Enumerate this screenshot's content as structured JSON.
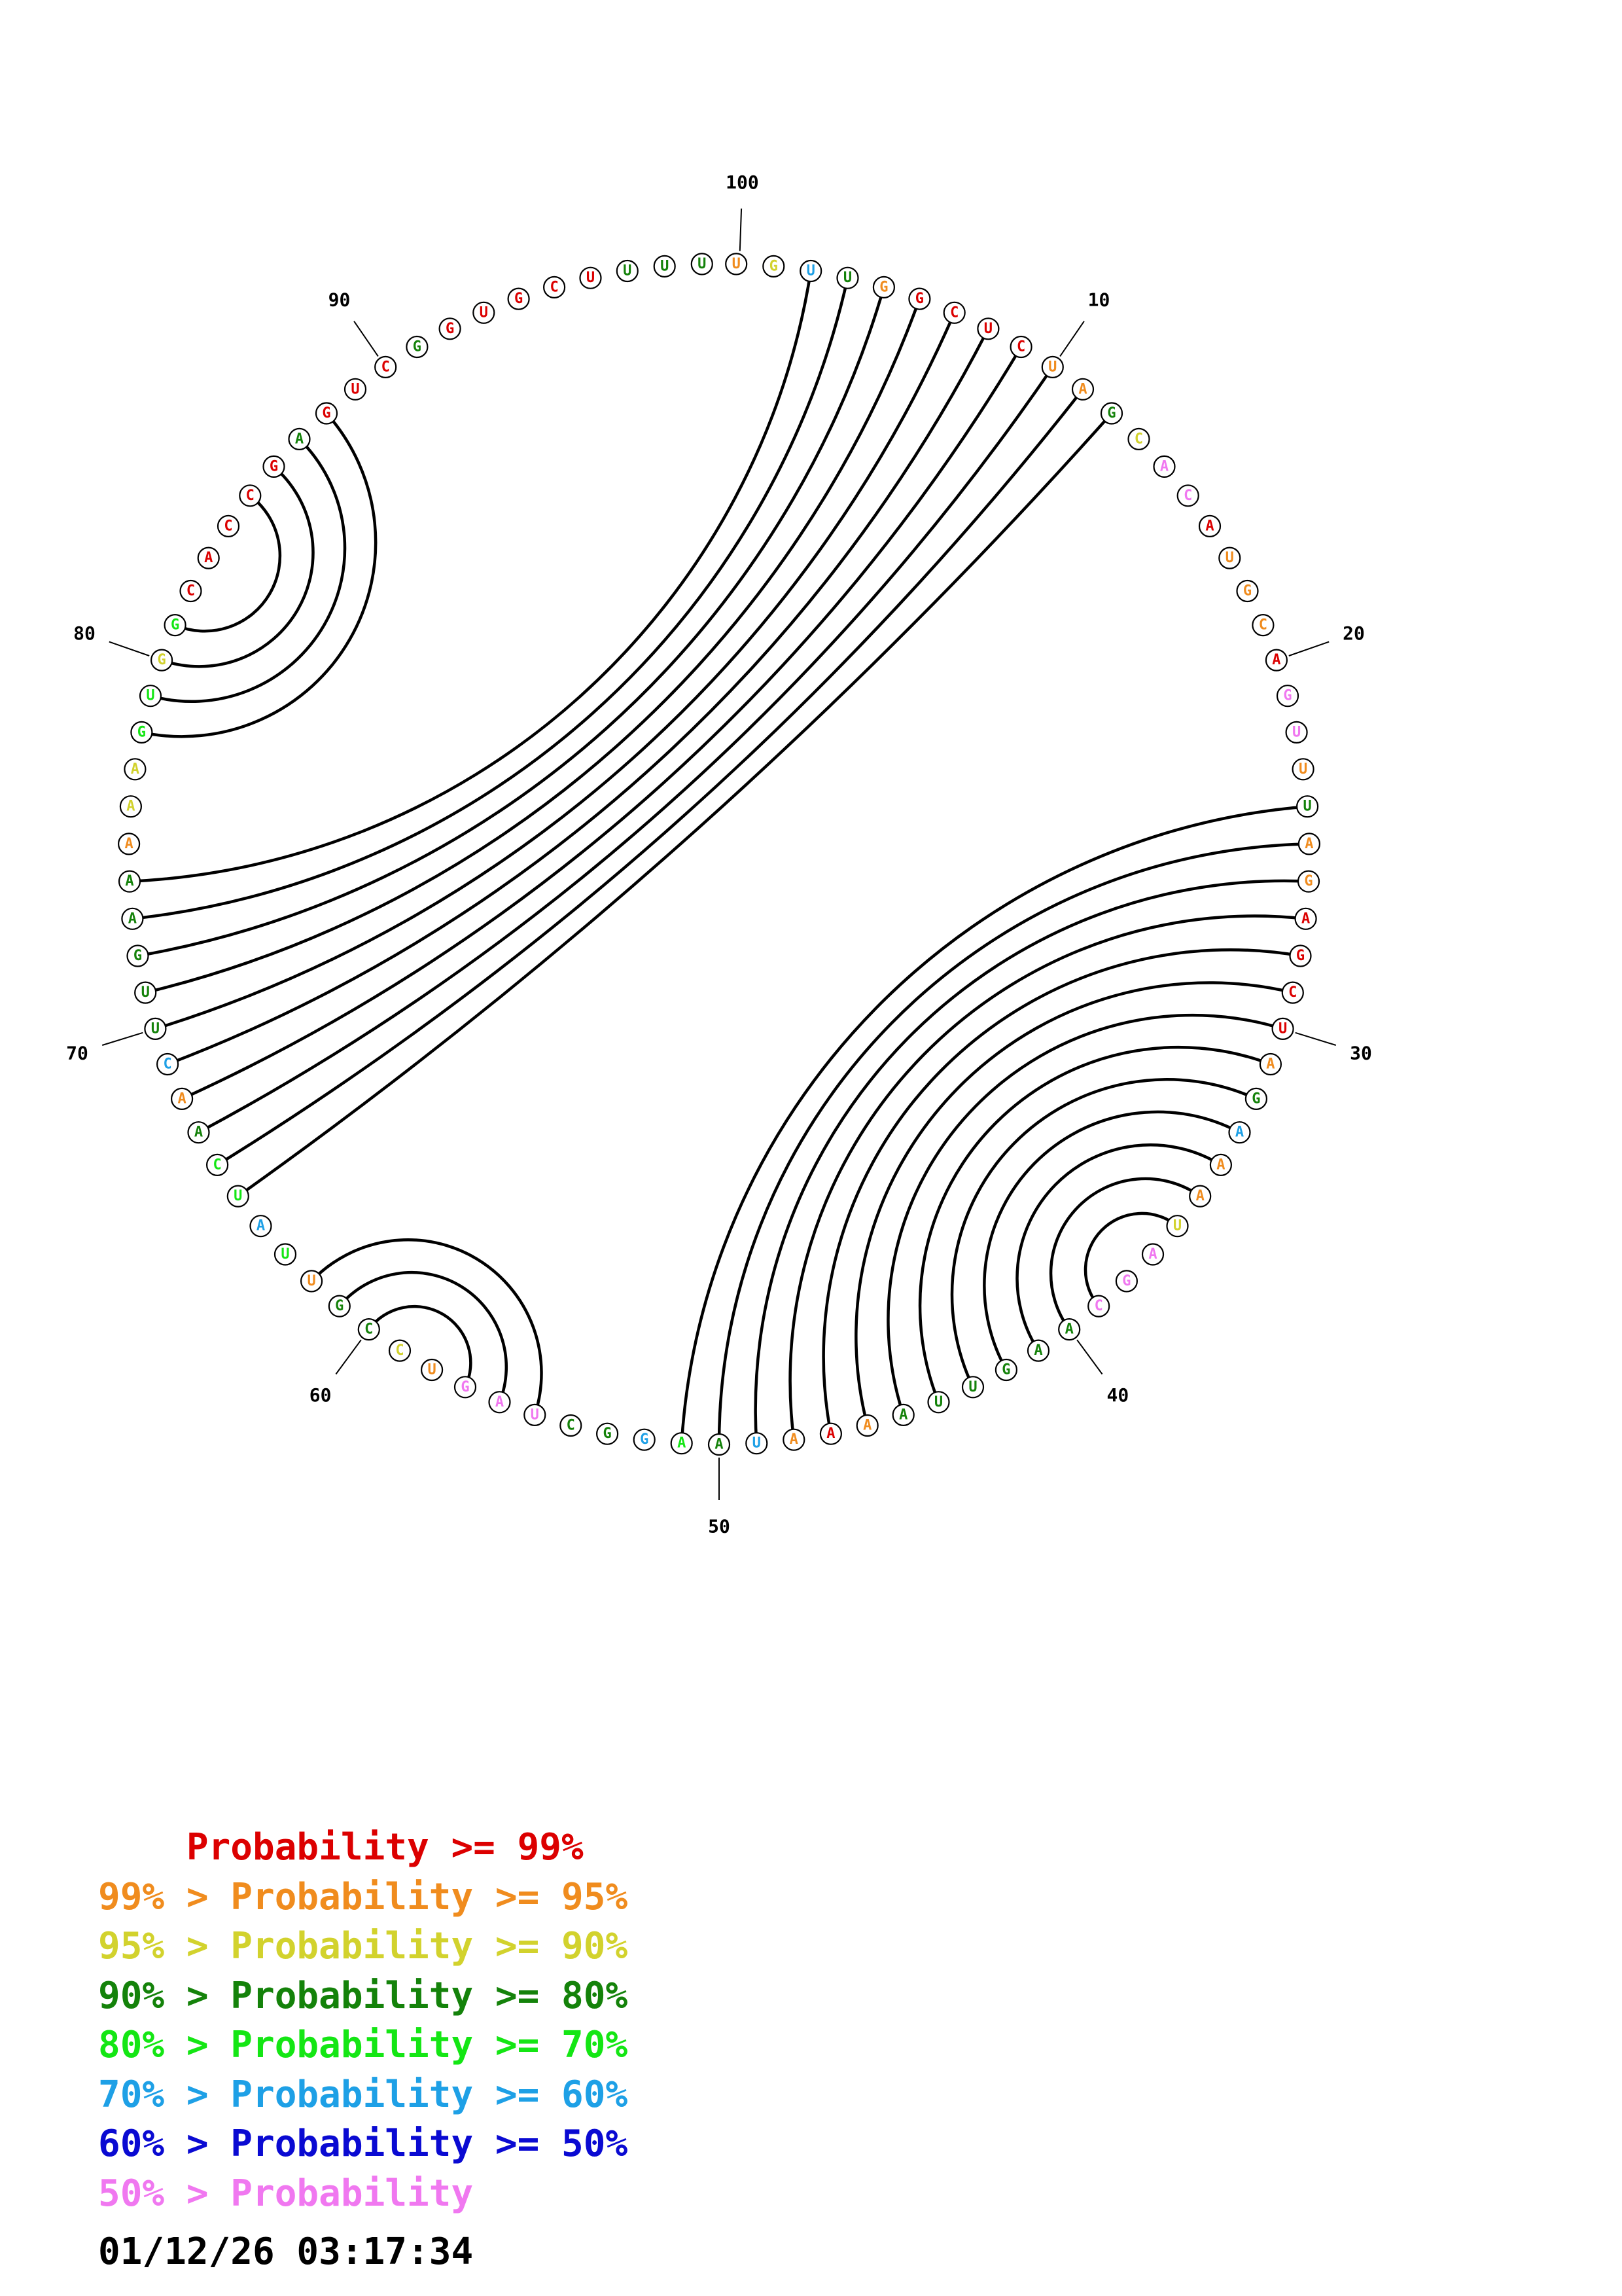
{
  "sequence": "UGUUGGCUCUAGCACAUGCAGUUUAGAGCUAGAAAUAGCAAGUUAAAAUAAGGCUAGUCCGUUAUCAACUUGAAAAAGUGGCACCGAGUCGGUGCUUUU",
  "nucleotide_colors": [
    "#f08c1e",
    "#d2d22d",
    "#1ea0e6",
    "#14820a",
    "#f08c1e",
    "#dc0000",
    "#dc0000",
    "#dc0000",
    "#dc0000",
    "#f08c1e",
    "#f08c1e",
    "#14820a",
    "#d2d22d",
    "#f078f0",
    "#f078f0",
    "#dc0000",
    "#f08c1e",
    "#f08c1e",
    "#f08c1e",
    "#dc0000",
    "#f078f0",
    "#f078f0",
    "#f08c1e",
    "#14820a",
    "#f08c1e",
    "#f08c1e",
    "#dc0000",
    "#dc0000",
    "#dc0000",
    "#dc0000",
    "#f08c1e",
    "#14820a",
    "#1ea0e6",
    "#f08c1e",
    "#f08c1e",
    "#d2d22d",
    "#f078f0",
    "#f078f0",
    "#f078f0",
    "#14820a",
    "#14820a",
    "#14820a",
    "#14820a",
    "#14820a",
    "#14820a",
    "#f08c1e",
    "#dc0000",
    "#f08c1e",
    "#1ea0e6",
    "#14820a",
    "#14e614",
    "#1ea0e6",
    "#14820a",
    "#14820a",
    "#f078f0",
    "#f078f0",
    "#f078f0",
    "#f08c1e",
    "#d2d22d",
    "#14820a",
    "#14820a",
    "#f08c1e",
    "#14e614",
    "#1ea0e6",
    "#14e614",
    "#14e614",
    "#14820a",
    "#f08c1e",
    "#1ea0e6",
    "#14820a",
    "#14820a",
    "#14820a",
    "#14820a",
    "#14820a",
    "#f08c1e",
    "#d2d22d",
    "#d2d22d",
    "#14e614",
    "#14e614",
    "#d2d22d",
    "#14e614",
    "#dc0000",
    "#dc0000",
    "#dc0000",
    "#dc0000",
    "#dc0000",
    "#14820a",
    "#dc0000",
    "#dc0000",
    "#dc0000",
    "#14820a",
    "#dc0000",
    "#dc0000",
    "#dc0000",
    "#dc0000",
    "#dc0000",
    "#14820a",
    "#14820a",
    "#14820a",
    "#14820a"
  ],
  "base_pairs": [
    [
      3,
      74
    ],
    [
      4,
      73
    ],
    [
      5,
      72
    ],
    [
      6,
      71
    ],
    [
      7,
      70
    ],
    [
      8,
      69
    ],
    [
      9,
      68
    ],
    [
      10,
      67
    ],
    [
      11,
      66
    ],
    [
      12,
      65
    ],
    [
      24,
      51
    ],
    [
      25,
      50
    ],
    [
      26,
      49
    ],
    [
      27,
      48
    ],
    [
      28,
      47
    ],
    [
      29,
      46
    ],
    [
      30,
      45
    ],
    [
      31,
      44
    ],
    [
      32,
      43
    ],
    [
      33,
      42
    ],
    [
      34,
      41
    ],
    [
      35,
      40
    ],
    [
      36,
      39
    ],
    [
      55,
      62
    ],
    [
      56,
      61
    ],
    [
      57,
      60
    ],
    [
      78,
      88
    ],
    [
      79,
      87
    ],
    [
      80,
      86
    ],
    [
      81,
      85
    ]
  ],
  "position_labels": [
    "10",
    "20",
    "30",
    "40",
    "50",
    "60",
    "70",
    "80",
    "90",
    "100"
  ],
  "legend": [
    {
      "text": "    Probability >= 99%",
      "color": "#dc0000"
    },
    {
      "text": "99% > Probability >= 95%",
      "color": "#f08c1e"
    },
    {
      "text": "95% > Probability >= 90%",
      "color": "#d2d22d"
    },
    {
      "text": "90% > Probability >= 80%",
      "color": "#14820a"
    },
    {
      "text": "80% > Probability >= 70%",
      "color": "#14e614"
    },
    {
      "text": "70% > Probability >= 60%",
      "color": "#1ea0e6"
    },
    {
      "text": "60% > Probability >= 50%",
      "color": "#0a0ad2"
    },
    {
      "text": "50% > Probability",
      "color": "#f078f0"
    }
  ],
  "timestamp": "01/12/26 03:17:34"
}
